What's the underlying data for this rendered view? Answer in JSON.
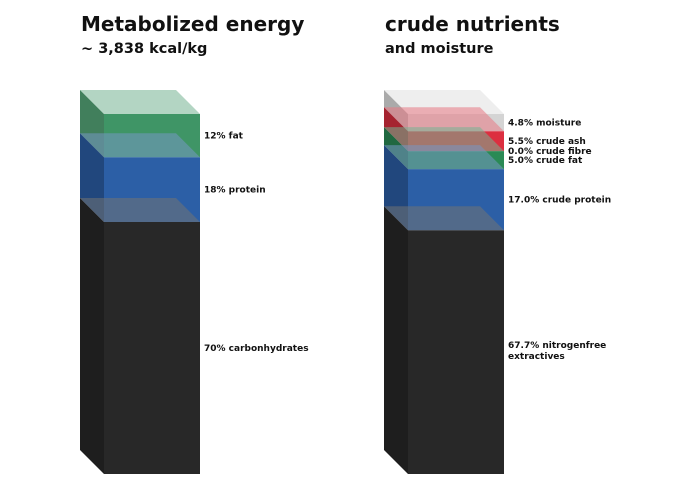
{
  "chart_data": [
    {
      "type": "bar",
      "stacked": true,
      "title": "Metabolized energy",
      "subtitle": "~ 3,838 kcal/kg",
      "unit": "%",
      "segments": [
        {
          "label": "70% carbonhydrates",
          "value": 70,
          "color": "#282828"
        },
        {
          "label": "18% protein",
          "value": 18,
          "color": "#2c5fa6"
        },
        {
          "label": "12% fat",
          "value": 12,
          "color": "#2a8a55"
        }
      ]
    },
    {
      "type": "bar",
      "stacked": true,
      "title": "crude nutrients",
      "subtitle": "and moisture",
      "unit": "%",
      "segments": [
        {
          "label": "67.7% nitrogenfree extractives",
          "value": 67.7,
          "color": "#282828"
        },
        {
          "label": "17.0% crude protein",
          "value": 17.0,
          "color": "#2c5fa6"
        },
        {
          "label": "5.0% crude fat",
          "value": 5.0,
          "color": "#2a8a55"
        },
        {
          "label": "0.0% crude fibre",
          "value": 0.0,
          "color": "#9a9a9a"
        },
        {
          "label": "5.5% crude ash",
          "value": 5.5,
          "color": "#dc2f40"
        },
        {
          "label": "4.8% moisture",
          "value": 4.8,
          "color": "#cfcfcf"
        }
      ]
    }
  ]
}
